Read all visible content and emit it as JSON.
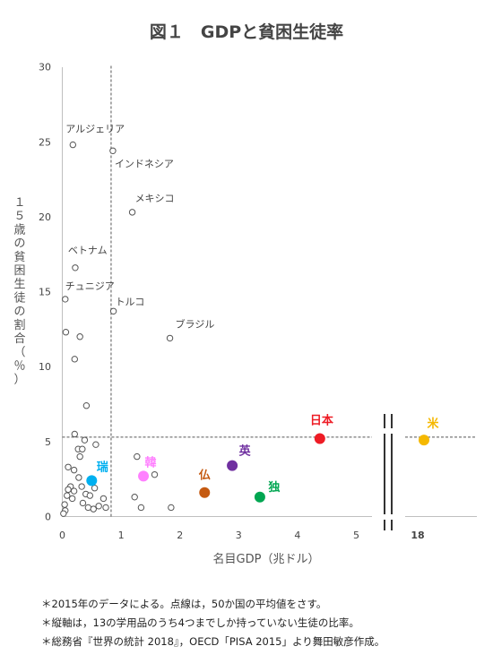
{
  "chart_data": {
    "type": "scatter",
    "title": "図１　GDPと貧困生徒率",
    "xlabel": "名目GDP（兆ドル）",
    "ylabel": "１５歳の貧困生徒の割合（％）",
    "xlim": [
      0,
      5
    ],
    "x_ticks": [
      "0",
      "1",
      "2",
      "3",
      "4",
      "5"
    ],
    "x_break_tick": "18",
    "ylim": [
      0,
      30
    ],
    "y_ticks": [
      "0",
      "5",
      "10",
      "15",
      "20",
      "25",
      "30"
    ],
    "average_lines": {
      "x": 0.83,
      "y": 5.3
    },
    "highlighted": [
      {
        "label": "日本",
        "x": 4.38,
        "y": 5.2,
        "color": "#ee1c25"
      },
      {
        "label": "米",
        "x": 18,
        "y": 5.1,
        "color": "#f5b800"
      },
      {
        "label": "英",
        "x": 2.89,
        "y": 3.4,
        "color": "#7030a0"
      },
      {
        "label": "独",
        "x": 3.36,
        "y": 1.3,
        "color": "#00a651"
      },
      {
        "label": "仏",
        "x": 2.42,
        "y": 1.6,
        "color": "#c55a11"
      },
      {
        "label": "韓",
        "x": 1.38,
        "y": 2.7,
        "color": "#ff80ff"
      },
      {
        "label": "瑞",
        "x": 0.5,
        "y": 2.4,
        "color": "#00b0f0"
      }
    ],
    "labeled_points": [
      {
        "label": "アルジェリア",
        "x": 0.18,
        "y": 24.8
      },
      {
        "label": "インドネシア",
        "x": 0.86,
        "y": 24.4
      },
      {
        "label": "メキシコ",
        "x": 1.19,
        "y": 20.3
      },
      {
        "label": "ベトナム",
        "x": 0.22,
        "y": 16.6
      },
      {
        "label": "チュニジア",
        "x": 0.05,
        "y": 14.5
      },
      {
        "label": "トルコ",
        "x": 0.87,
        "y": 13.7
      },
      {
        "label": "ブラジル",
        "x": 1.83,
        "y": 11.9
      }
    ],
    "other_points": [
      [
        0.06,
        12.3
      ],
      [
        0.3,
        12.0
      ],
      [
        0.21,
        10.5
      ],
      [
        0.41,
        7.4
      ],
      [
        0.21,
        5.5
      ],
      [
        0.38,
        5.1
      ],
      [
        0.57,
        4.8
      ],
      [
        0.27,
        4.5
      ],
      [
        0.34,
        4.5
      ],
      [
        0.3,
        4.0
      ],
      [
        1.27,
        4.0
      ],
      [
        0.1,
        3.3
      ],
      [
        0.2,
        3.1
      ],
      [
        1.57,
        2.8
      ],
      [
        0.28,
        2.6
      ],
      [
        0.14,
        2.0
      ],
      [
        0.33,
        2.0
      ],
      [
        0.55,
        1.9
      ],
      [
        0.1,
        1.8
      ],
      [
        0.2,
        1.7
      ],
      [
        0.08,
        1.4
      ],
      [
        0.4,
        1.5
      ],
      [
        0.47,
        1.4
      ],
      [
        0.17,
        1.2
      ],
      [
        1.23,
        1.3
      ],
      [
        0.7,
        1.2
      ],
      [
        0.35,
        0.9
      ],
      [
        0.04,
        0.8
      ],
      [
        0.62,
        0.7
      ],
      [
        0.74,
        0.6
      ],
      [
        0.44,
        0.6
      ],
      [
        1.85,
        0.6
      ],
      [
        0.53,
        0.5
      ],
      [
        1.34,
        0.6
      ],
      [
        0.05,
        0.4
      ],
      [
        0.02,
        0.2
      ]
    ]
  },
  "notes": [
    "＊2015年のデータによる。点線は，50か国の平均値をさす。",
    "＊縦軸は，13の学用品のうち4つまでしか持っていない生徒の比率。",
    "＊総務省『世界の統計 2018』，OECD「PISA 2015」より舞田敏彦作成。"
  ]
}
